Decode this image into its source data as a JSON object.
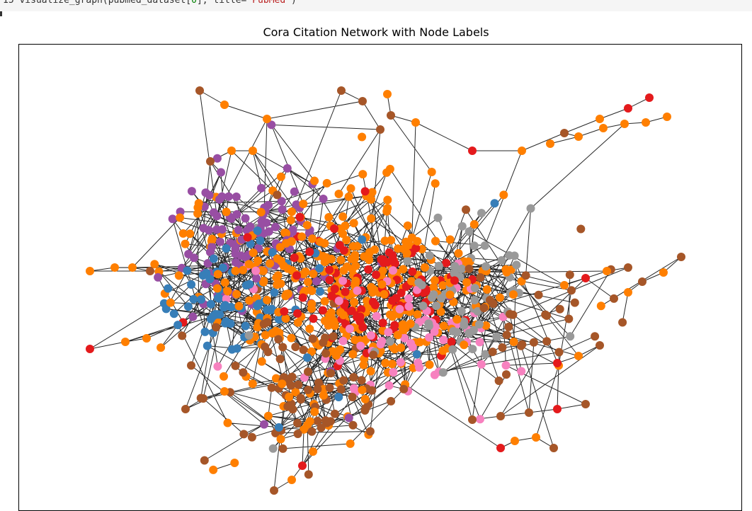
{
  "notebook": {
    "code_parts": [
      {
        "text": "15 visualize_graph(pubmed_dataset[",
        "cls": ""
      },
      {
        "text": "0",
        "cls": "num"
      },
      {
        "text": "], title=",
        "cls": ""
      },
      {
        "text": "\"PubMed\"",
        "cls": "str"
      },
      {
        "text": ")",
        "cls": ""
      }
    ]
  },
  "plot": {
    "title": "Cora Citation Network with Node Labels"
  },
  "colors": {
    "edge": "#000000",
    "label_0": "#ff7f00",
    "label_1": "#984ea3",
    "label_2": "#377eb8",
    "label_3": "#e41a1c",
    "label_4": "#f781bf",
    "label_5": "#999999",
    "label_6": "#a65628"
  }
}
